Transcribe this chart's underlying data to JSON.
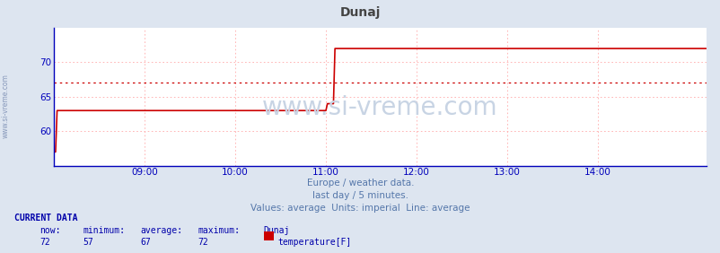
{
  "title": "Dunaj",
  "title_color": "#444444",
  "bg_color": "#dde5f0",
  "plot_bg_color": "#ffffff",
  "line_color": "#cc0000",
  "avg_line_color": "#cc0000",
  "axis_color": "#0000bb",
  "grid_color": "#ffaaaa",
  "watermark": "www.si-vreme.com",
  "watermark_color": "#c8d4e4",
  "subtitle1": "Europe / weather data.",
  "subtitle2": "last day / 5 minutes.",
  "subtitle3": "Values: average  Units: imperial  Line: average",
  "subtitle_color": "#5577aa",
  "current_data_label": "CURRENT DATA",
  "current_data_color": "#0000aa",
  "col_headers": [
    "now:",
    "minimum:",
    "average:",
    "maximum:",
    "Dunaj"
  ],
  "col_values": [
    "72",
    "57",
    "67",
    "72"
  ],
  "legend_label": "temperature[F]",
  "legend_color": "#cc0000",
  "xmin": 0,
  "xmax": 432,
  "ymin": 55,
  "ymax": 75,
  "yticks": [
    60,
    65,
    70
  ],
  "avg_value": 67,
  "xtick_pos": [
    60,
    120,
    180,
    240,
    300,
    360
  ],
  "xtick_labels": [
    "09:00",
    "10:00",
    "11:00",
    "12:00",
    "13:00",
    "14:00"
  ],
  "x_data": [
    0,
    1,
    2,
    180,
    181,
    185,
    186,
    432
  ],
  "y_data": [
    57,
    57,
    63,
    63,
    64,
    64,
    72,
    72
  ],
  "side_text": "www.si-vreme.com",
  "side_text_color": "#8899bb"
}
